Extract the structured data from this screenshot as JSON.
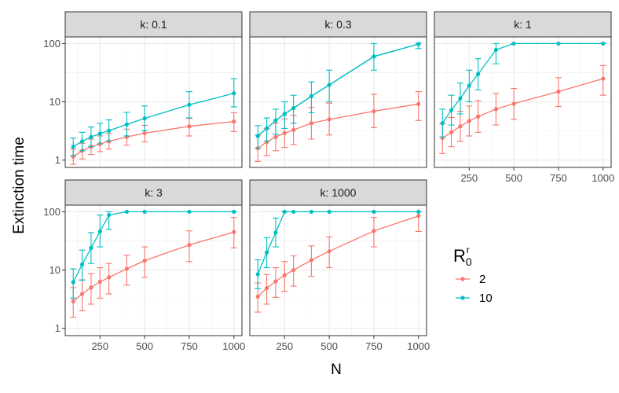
{
  "chart_data": {
    "type": "line",
    "ylabel": "Extinction time",
    "xlabel": "N",
    "yscale": "log10",
    "ylim": [
      0.75,
      130
    ],
    "xlim": [
      55,
      1045
    ],
    "y_ticks": [
      {
        "value": 1,
        "label": "1"
      },
      {
        "value": 10,
        "label": "10"
      },
      {
        "value": 100,
        "label": "100"
      }
    ],
    "x_ticks": [
      {
        "value": 250,
        "label": "250"
      },
      {
        "value": 500,
        "label": "500"
      },
      {
        "value": 750,
        "label": "750"
      },
      {
        "value": 1000,
        "label": "1000"
      }
    ],
    "x": [
      100,
      150,
      200,
      250,
      300,
      400,
      500,
      750,
      1000
    ],
    "grid": true,
    "legend": {
      "title_main": "R",
      "title_sub": "0",
      "title_sup": "r",
      "placement": "right",
      "entries": [
        {
          "label": "2",
          "color": "#F8766D"
        },
        {
          "label": "10",
          "color": "#00BFC4"
        }
      ]
    },
    "facets": [
      {
        "label": "k: 0.1",
        "series": [
          {
            "color": "#F8766D",
            "values": [
              1.15,
              1.45,
              1.7,
              1.9,
              2.1,
              2.5,
              2.9,
              3.8,
              4.6
            ],
            "lower": [
              0.85,
              1.05,
              1.25,
              1.4,
              1.55,
              1.8,
              2.05,
              2.6,
              3.1
            ],
            "upper": [
              1.55,
              1.95,
              2.3,
              2.6,
              2.85,
              3.4,
              3.95,
              5.2,
              6.5
            ]
          },
          {
            "color": "#00BFC4",
            "values": [
              1.7,
              2.1,
              2.5,
              2.85,
              3.2,
              4.1,
              5.2,
              8.9,
              14
            ],
            "lower": [
              1.2,
              1.45,
              1.7,
              1.9,
              2.15,
              2.6,
              3.2,
              5.3,
              8.2
            ],
            "upper": [
              2.4,
              3.0,
              3.7,
              4.3,
              4.9,
              6.6,
              8.5,
              15,
              25
            ]
          }
        ]
      },
      {
        "label": "k: 0.3",
        "series": [
          {
            "color": "#F8766D",
            "values": [
              1.6,
              2.05,
              2.5,
              2.9,
              3.3,
              4.3,
              5.0,
              6.9,
              9.2
            ],
            "lower": [
              0.95,
              1.2,
              1.45,
              1.65,
              1.85,
              2.3,
              2.7,
              3.6,
              4.8
            ],
            "upper": [
              2.7,
              3.5,
              4.3,
              5.1,
              5.9,
              8.0,
              9.5,
              13.5,
              15
            ]
          },
          {
            "color": "#00BFC4",
            "values": [
              2.6,
              3.5,
              4.8,
              6.2,
              7.8,
              12.5,
              19.5,
              60,
              98
            ]
          },
          {
            "color": "#00BFC4",
            "values": [
              2.6,
              3.5,
              4.8,
              6.2,
              7.8,
              12.5,
              19.5,
              60,
              98
            ],
            "lower": [
              1.6,
              2.1,
              2.8,
              3.5,
              4.3,
              6.5,
              10,
              35,
              82
            ],
            "upper": [
              3.9,
              5.3,
              7.5,
              10,
              13,
              22,
              35,
              100,
              102
            ]
          }
        ]
      },
      {
        "label": "k: 1",
        "series": [
          {
            "color": "#F8766D",
            "values": [
              2.4,
              3.0,
              3.8,
              4.7,
              5.6,
              7.5,
              9.3,
              15,
              25
            ],
            "lower": [
              1.3,
              1.7,
              2.1,
              2.6,
              3.0,
              4.0,
              5.0,
              8.3,
              13
            ],
            "upper": [
              4.2,
              5.4,
              6.9,
              8.5,
              10.5,
              14,
              17,
              26,
              42
            ]
          },
          {
            "color": "#00BFC4",
            "values": [
              4.3,
              7.2,
              11.5,
              19,
              30,
              78,
              100,
              100,
              100
            ],
            "lower": [
              2.5,
              4.0,
              6.2,
              10,
              16,
              45,
              100,
              100,
              100
            ],
            "upper": [
              7.5,
              13,
              21,
              35,
              55,
              100,
              100,
              100,
              100
            ]
          }
        ]
      },
      {
        "label": "k: 3",
        "series": [
          {
            "color": "#F8766D",
            "values": [
              2.9,
              3.9,
              5.0,
              6.3,
              7.5,
              10.5,
              14.5,
              27,
              45
            ],
            "lower": [
              1.55,
              2.0,
              2.6,
              3.3,
              3.9,
              5.5,
              7.5,
              14,
              24
            ],
            "upper": [
              5.0,
              6.8,
              8.7,
              11,
              13,
              18,
              25,
              47,
              80
            ]
          },
          {
            "color": "#00BFC4",
            "values": [
              6.2,
              12.5,
              24,
              46,
              88,
              100,
              100,
              100,
              100
            ],
            "lower": [
              3.3,
              6.7,
              13,
              25,
              50,
              100,
              100,
              100,
              100
            ],
            "upper": [
              10.5,
              22,
              44,
              88,
              100,
              100,
              100,
              100,
              100
            ]
          }
        ]
      },
      {
        "label": "k: 1000",
        "series": [
          {
            "color": "#F8766D",
            "values": [
              3.5,
              4.9,
              6.4,
              8.2,
              10,
              14.8,
              21,
              47,
              85
            ],
            "lower": [
              1.9,
              2.6,
              3.4,
              4.3,
              5.3,
              7.8,
              11,
              25,
              46
            ],
            "upper": [
              6.0,
              8.4,
              11,
              14,
              17.5,
              26,
              37,
              80,
              100
            ]
          },
          {
            "color": "#00BFC4",
            "values": [
              8.5,
              20,
              44,
              100,
              100,
              100,
              100,
              100,
              100
            ],
            "lower": [
              4.8,
              11,
              25,
              100,
              100,
              100,
              100,
              100,
              100
            ],
            "upper": [
              15,
              36,
              78,
              100,
              100,
              100,
              100,
              100,
              100
            ]
          }
        ]
      }
    ]
  }
}
